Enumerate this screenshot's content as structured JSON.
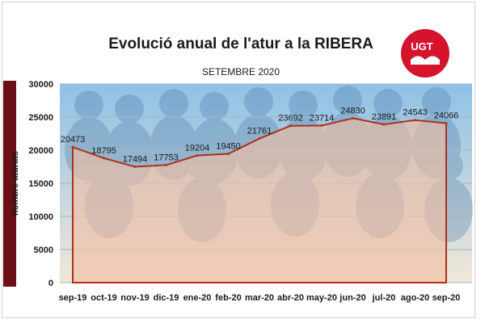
{
  "colors": {
    "area_fill": "#f3bfa2",
    "area_line": "#b03018",
    "plot_bg_top": "#8fc1e6",
    "plot_bg_bottom": "#f1e7d8",
    "logo_red": "#d5132c",
    "left_bar": "#6a0f18"
  },
  "logo": {
    "text": "UGT",
    "icon": "handshake-icon"
  },
  "chart_data": {
    "type": "area",
    "title": "Evolució anual de l'atur a la RIBERA",
    "subtitle": "SETEMBRE 2020",
    "xlabel": "",
    "ylabel": "nombre aturats",
    "ylim": [
      0,
      30000
    ],
    "yticks": [
      0,
      5000,
      10000,
      15000,
      20000,
      25000,
      30000
    ],
    "grid": true,
    "legend": "none",
    "categories": [
      "sep-19",
      "oct-19",
      "nov-19",
      "dic-19",
      "ene-20",
      "feb-20",
      "mar-20",
      "abr-20",
      "may-20",
      "jun-20",
      "jul-20",
      "ago-20",
      "sep-20"
    ],
    "series": [
      {
        "values": [
          20473,
          18795,
          17494,
          17753,
          19204,
          19450,
          21761,
          23692,
          23714,
          24830,
          23891,
          24543,
          24066
        ]
      }
    ]
  }
}
